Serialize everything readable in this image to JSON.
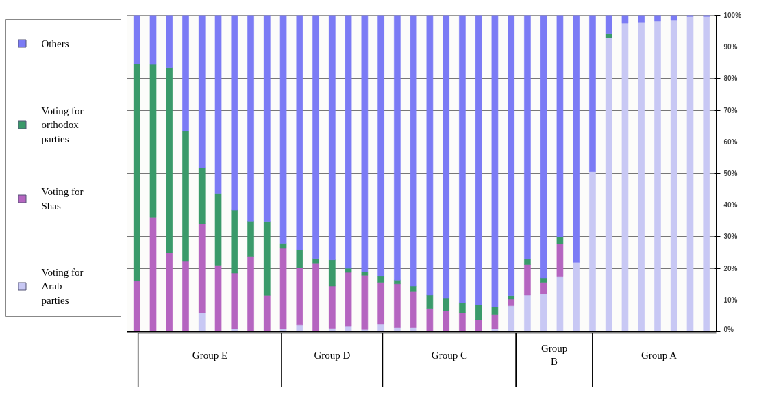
{
  "chart_data": {
    "type": "bar",
    "stacked": true,
    "categories": [
      null,
      null,
      null,
      null,
      null,
      null,
      null,
      null,
      null,
      null,
      null,
      null,
      null,
      null,
      null,
      null,
      null,
      null,
      null,
      null,
      null,
      null,
      null,
      null,
      null,
      null,
      null,
      null,
      null,
      null,
      null,
      null,
      null,
      null,
      null,
      null
    ],
    "series": [
      {
        "name": "Voting for Arab parties",
        "color": "#c8c8f4",
        "values": [
          0,
          0,
          0,
          0,
          5.9,
          0,
          0.9,
          0,
          0,
          0.9,
          2.1,
          0,
          1.1,
          1.6,
          0.7,
          2.3,
          1.3,
          1.3,
          0,
          0,
          0,
          0,
          0.9,
          8.2,
          11.6,
          11.9,
          17.3,
          21.9,
          50.6,
          92.9,
          97.5,
          97.9,
          98.2,
          98.6,
          99.6,
          99.6
        ]
      },
      {
        "name": "Voting for Shas",
        "color": "#b565c0",
        "values": [
          16.0,
          36.2,
          24.9,
          22.2,
          28.2,
          21.0,
          17.6,
          23.8,
          11.5,
          25.4,
          18.1,
          21.5,
          13.3,
          17.1,
          17.1,
          13.3,
          13.8,
          11.5,
          7.3,
          6.6,
          5.9,
          3.8,
          4.5,
          2.1,
          9.6,
          3.7,
          10.4,
          0,
          0,
          0,
          0,
          0,
          0,
          0,
          0,
          0
        ]
      },
      {
        "name": "Voting for orthodox parties",
        "color": "#3a9a6a",
        "values": [
          68.7,
          48.3,
          58.6,
          41.2,
          17.7,
          22.7,
          19.9,
          11.1,
          23.3,
          1.6,
          5.6,
          1.6,
          8.3,
          1.3,
          1.1,
          1.9,
          1.2,
          1.6,
          4.3,
          3.9,
          3.3,
          4.7,
          2.4,
          1.1,
          1.7,
          1.4,
          2.3,
          0,
          0,
          1.4,
          0,
          0,
          0,
          0,
          0,
          0
        ]
      },
      {
        "name": "Others",
        "color": "#7b7bf5",
        "values": [
          15.3,
          15.5,
          16.5,
          36.6,
          48.2,
          56.3,
          61.6,
          65.1,
          65.2,
          72.1,
          74.2,
          76.9,
          77.3,
          80.0,
          81.1,
          82.5,
          83.7,
          85.6,
          88.4,
          89.5,
          90.8,
          91.5,
          92.2,
          88.6,
          77.1,
          83.0,
          70.0,
          78.1,
          49.4,
          5.7,
          2.5,
          2.1,
          1.8,
          1.4,
          0.4,
          0.4
        ]
      }
    ],
    "ylim": [
      0,
      100
    ],
    "yticks": [
      {
        "value": 0,
        "label": "0%"
      },
      {
        "value": 10,
        "label": "10%"
      },
      {
        "value": 20,
        "label": "20%"
      },
      {
        "value": 30,
        "label": "30%"
      },
      {
        "value": 40,
        "label": "40%"
      },
      {
        "value": 50,
        "label": "50%"
      },
      {
        "value": 60,
        "label": "60%"
      },
      {
        "value": 70,
        "label": "70%"
      },
      {
        "value": 80,
        "label": "80%"
      },
      {
        "value": 90,
        "label": "90%"
      },
      {
        "value": 100,
        "label": "100%"
      }
    ],
    "grid": "y",
    "legend": "left",
    "tick_labels": "y",
    "annotations": [
      "Group E",
      "Group D",
      "Group C",
      "Group B",
      "Group A"
    ]
  }
}
